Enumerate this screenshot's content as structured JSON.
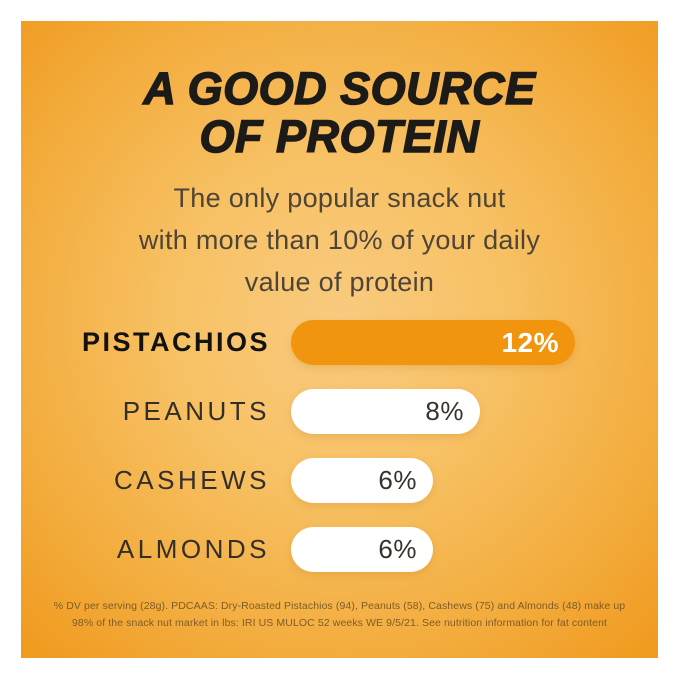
{
  "page": {
    "margin_color": "#ffffff",
    "card_gradient_center": "#f9cb80",
    "card_gradient_edge": "#f0991d"
  },
  "header": {
    "title_line1": "A GOOD SOURCE",
    "title_line2": "OF PROTEIN",
    "subtitle_lines": [
      "The only popular snack nut",
      "with more than 10% of your daily",
      "value of protein"
    ]
  },
  "chart_data": {
    "type": "bar",
    "orientation": "horizontal",
    "title": "A GOOD SOURCE OF PROTEIN",
    "subtitle": "The only popular snack nut with more than 10% of your daily value of protein",
    "categories": [
      "PISTACHIOS",
      "PEANUTS",
      "CASHEWS",
      "ALMONDS"
    ],
    "values": [
      12,
      8,
      6,
      6
    ],
    "value_labels": [
      "12%",
      "8%",
      "6%",
      "6%"
    ],
    "unit": "% daily value of protein per serving",
    "xlim": [
      0,
      12
    ],
    "grid": false,
    "legend": false,
    "highlight_category": "PISTACHIOS",
    "highlight_bar_color": "#f1940e",
    "default_bar_color": "#ffffff",
    "highlight_value_text_color": "#ffffff",
    "default_value_text_color": "#37322b"
  },
  "footnote": {
    "line1": "% DV per serving (28g). PDCAAS: Dry-Roasted Pistachios (94), Peanuts (58), Cashews (75) and Almonds (48) make up",
    "line2": "98% of the snack nut market in lbs: IRI US MULOC 52 weeks WE 9/5/21. See nutrition information for fat content"
  }
}
